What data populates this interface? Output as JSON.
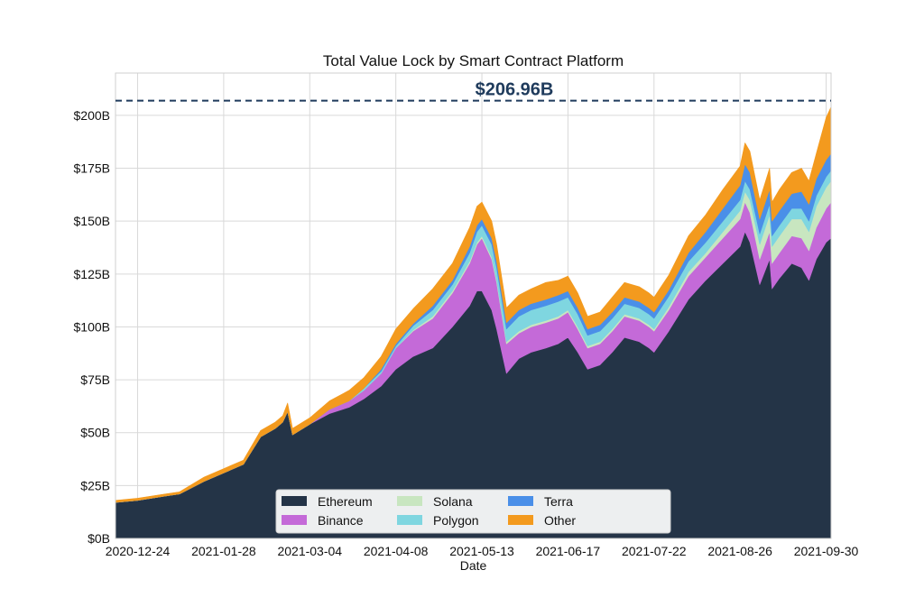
{
  "chart_data": {
    "type": "area",
    "stacked": true,
    "title": "Total Value Lock by Smart Contract Platform",
    "xlabel": "Date",
    "ylabel": "",
    "ylim": [
      0,
      220
    ],
    "y_unit": "$B",
    "y_ticks": [
      0,
      25,
      50,
      75,
      100,
      125,
      150,
      175,
      200
    ],
    "y_tick_labels": [
      "$0B",
      "$25B",
      "$50B",
      "$75B",
      "$100B",
      "$125B",
      "$150B",
      "$175B",
      "$200B"
    ],
    "x_range": [
      "2020-12-15",
      "2021-10-02"
    ],
    "x_tick_labels": [
      "2020-12-24",
      "2021-01-28",
      "2021-03-04",
      "2021-04-08",
      "2021-05-13",
      "2021-06-17",
      "2021-07-22",
      "2021-08-26",
      "2021-09-30"
    ],
    "grid": true,
    "legend_position": "bottom-center",
    "annotation": {
      "label": "$206.96B",
      "value": 206.96,
      "style": "dashed-horizontal-line",
      "color": "#1f3b5c"
    },
    "x": [
      "2020-12-15",
      "2020-12-24",
      "2021-01-04",
      "2021-01-10",
      "2021-01-20",
      "2021-01-28",
      "2021-02-05",
      "2021-02-12",
      "2021-02-18",
      "2021-02-21",
      "2021-02-23",
      "2021-02-25",
      "2021-03-04",
      "2021-03-12",
      "2021-03-20",
      "2021-03-26",
      "2021-04-02",
      "2021-04-08",
      "2021-04-15",
      "2021-04-23",
      "2021-05-01",
      "2021-05-08",
      "2021-05-11",
      "2021-05-13",
      "2021-05-17",
      "2021-05-19",
      "2021-05-23",
      "2021-05-28",
      "2021-06-02",
      "2021-06-08",
      "2021-06-13",
      "2021-06-17",
      "2021-06-21",
      "2021-06-25",
      "2021-06-30",
      "2021-07-05",
      "2021-07-10",
      "2021-07-16",
      "2021-07-20",
      "2021-07-22",
      "2021-07-28",
      "2021-08-05",
      "2021-08-12",
      "2021-08-19",
      "2021-08-26",
      "2021-08-28",
      "2021-08-30",
      "2021-09-03",
      "2021-09-07",
      "2021-09-08",
      "2021-09-11",
      "2021-09-16",
      "2021-09-20",
      "2021-09-23",
      "2021-09-26",
      "2021-09-30",
      "2021-10-02"
    ],
    "series": [
      {
        "name": "Ethereum",
        "color": "#243447",
        "values": [
          17,
          18,
          20,
          21,
          27,
          31,
          35,
          48,
          52,
          55,
          60,
          49,
          54,
          59,
          62,
          66,
          72,
          80,
          86,
          90,
          100,
          110,
          117,
          117,
          108,
          99,
          78,
          85,
          88,
          90,
          92,
          95,
          88,
          80,
          82,
          88,
          95,
          93,
          90,
          88,
          98,
          113,
          122,
          130,
          138,
          145,
          140,
          120,
          132,
          118,
          123,
          130,
          128,
          122,
          132,
          140,
          142
        ]
      },
      {
        "name": "Binance",
        "color": "#c46ad8",
        "values": [
          0,
          0,
          0,
          0,
          0,
          0,
          0,
          0,
          0,
          0,
          0,
          0,
          0,
          2,
          3,
          4,
          6,
          10,
          12,
          14,
          16,
          20,
          22,
          25,
          24,
          22,
          14,
          12,
          12,
          12,
          12,
          12,
          11,
          10,
          10,
          10,
          10,
          10,
          10,
          10,
          10,
          11,
          11,
          12,
          13,
          14,
          14,
          12,
          13,
          12,
          12,
          13,
          14,
          14,
          15,
          16,
          17
        ]
      },
      {
        "name": "Solana",
        "color": "#c8e6c0",
        "values": [
          0,
          0,
          0,
          0,
          0,
          0,
          0,
          0,
          0,
          0,
          0,
          0,
          0,
          0,
          0,
          0,
          0,
          0,
          0.5,
          1,
          1,
          1,
          1,
          1,
          1,
          1,
          1,
          1,
          1,
          1,
          1,
          1,
          1,
          1,
          1,
          1,
          1,
          1,
          1,
          1,
          1.5,
          2,
          2,
          3,
          4,
          5,
          6,
          7,
          8,
          8,
          8,
          8,
          9,
          9,
          10,
          10,
          10
        ]
      },
      {
        "name": "Polygon",
        "color": "#7fd6e0",
        "values": [
          0,
          0,
          0,
          0,
          0,
          0,
          0,
          0,
          0,
          0,
          0,
          0,
          0,
          0,
          0,
          1,
          1,
          1,
          2,
          3,
          3,
          4,
          5,
          5,
          6,
          6,
          6,
          7,
          7,
          7,
          7,
          6,
          6,
          5,
          5,
          5,
          5,
          5,
          5,
          5,
          5,
          5,
          5,
          5,
          5,
          5,
          5,
          5,
          5,
          5,
          5,
          5,
          5,
          5,
          5,
          5,
          5
        ]
      },
      {
        "name": "Terra",
        "color": "#4a8fe8",
        "values": [
          0,
          0,
          0,
          0,
          0,
          0,
          0,
          0,
          0,
          0,
          0,
          0,
          0,
          0,
          0,
          0,
          1,
          1,
          1,
          2,
          2,
          3,
          3,
          3,
          3,
          3,
          3,
          3,
          3,
          3,
          3,
          3,
          3,
          3,
          3,
          3,
          3,
          3,
          3,
          3,
          3,
          4,
          5,
          6,
          7,
          8,
          8,
          7,
          7,
          7,
          7,
          7,
          8,
          8,
          8,
          8,
          8
        ]
      },
      {
        "name": "Other",
        "color": "#f39a1e",
        "values": [
          1,
          1,
          1,
          1,
          2,
          2,
          2,
          3,
          3,
          3,
          4,
          3,
          3,
          4,
          5,
          5,
          6,
          7,
          7,
          8,
          8,
          9,
          9,
          8,
          8,
          8,
          7,
          7,
          7,
          8,
          7,
          7,
          7,
          6,
          6,
          7,
          7,
          7,
          7,
          7,
          7,
          8,
          8,
          9,
          9,
          10,
          10,
          9,
          10,
          9,
          10,
          10,
          11,
          11,
          12,
          20,
          22
        ]
      }
    ]
  }
}
